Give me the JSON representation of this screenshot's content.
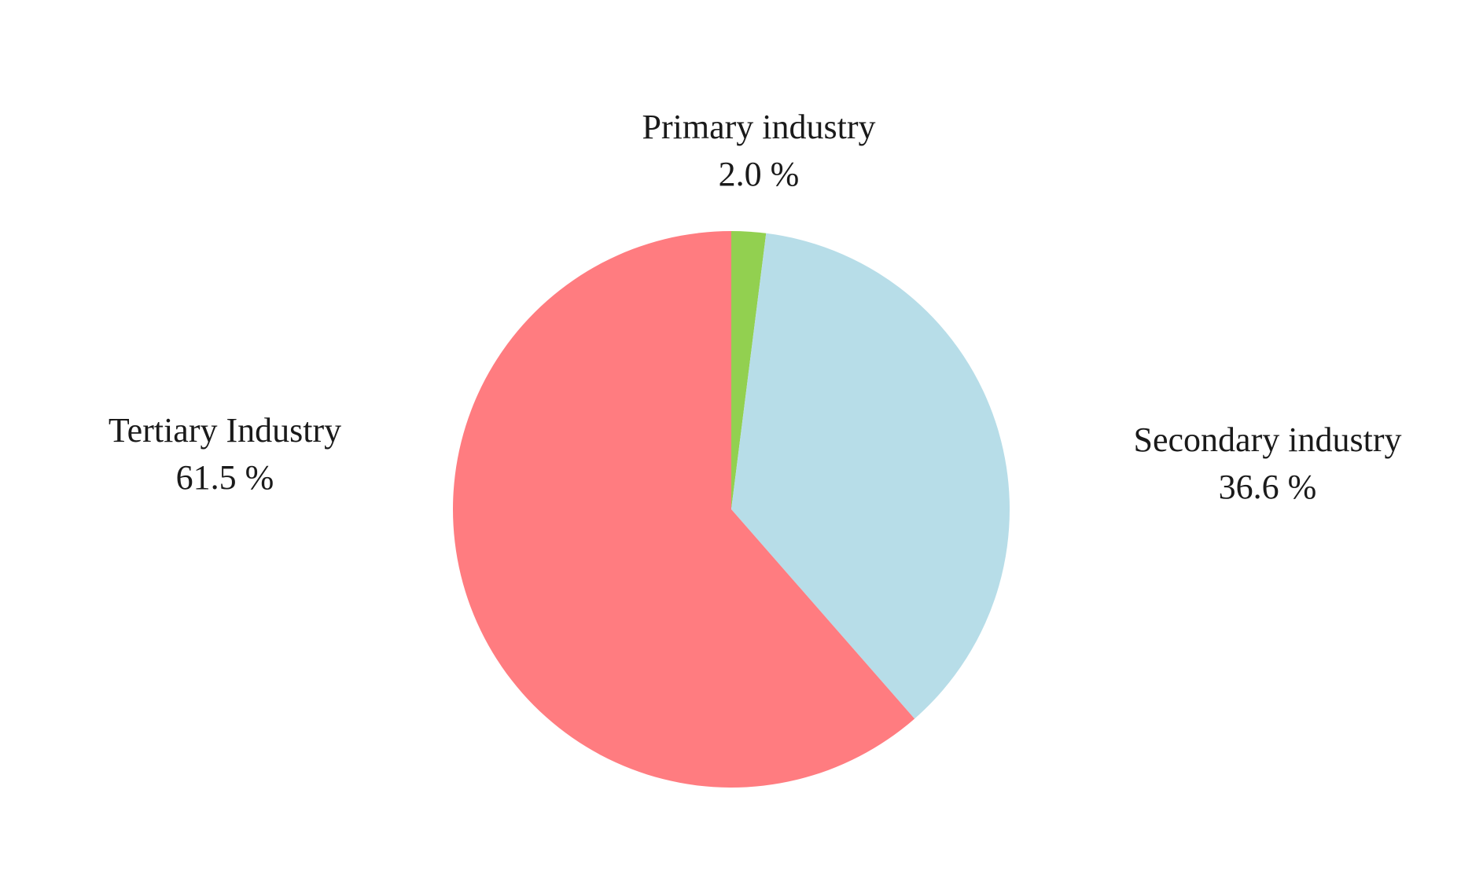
{
  "chart_data": {
    "type": "pie",
    "title": "",
    "start_angle_deg": 0,
    "direction": "clockwise",
    "slices": [
      {
        "label": "Primary industry",
        "value": 2.0,
        "value_text": "2.0 %",
        "color": "#92d050"
      },
      {
        "label": "Secondary industry",
        "value": 36.6,
        "value_text": "36.6 %",
        "color": "#b7dde8"
      },
      {
        "label": "Tertiary Industry",
        "value": 61.5,
        "value_text": "61.5 %",
        "color": "#ff7c80"
      }
    ]
  }
}
